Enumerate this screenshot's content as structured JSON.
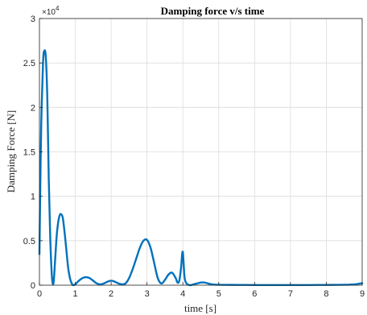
{
  "chart_data": {
    "type": "line",
    "title": "Damping force v/s time",
    "xlabel": "time [s]",
    "ylabel": "Damping Force [N]",
    "xlim": [
      0,
      9
    ],
    "ylim": [
      0,
      3
    ],
    "y_multiplier": "×10",
    "y_multiplier_exponent": "4",
    "x_ticks": [
      "0",
      "1",
      "2",
      "3",
      "4",
      "5",
      "6",
      "7",
      "8",
      "9"
    ],
    "y_ticks": [
      "0",
      "0.5",
      "1",
      "1.5",
      "2",
      "2.5",
      "3"
    ],
    "grid": true,
    "series": [
      {
        "color": "#0072BD",
        "x": [
          0.0,
          0.02,
          0.05,
          0.1,
          0.14,
          0.18,
          0.22,
          0.26,
          0.3,
          0.34,
          0.37,
          0.4,
          0.44,
          0.48,
          0.52,
          0.56,
          0.6,
          0.65,
          0.7,
          0.75,
          0.8,
          0.85,
          0.9,
          0.95,
          1.0,
          1.05,
          1.1,
          1.2,
          1.3,
          1.4,
          1.5,
          1.6,
          1.7,
          1.8,
          1.9,
          2.0,
          2.1,
          2.2,
          2.3,
          2.4,
          2.5,
          2.6,
          2.7,
          2.8,
          2.9,
          3.0,
          3.1,
          3.2,
          3.3,
          3.4,
          3.5,
          3.6,
          3.7,
          3.8,
          3.85,
          3.9,
          3.95,
          3.98,
          4.0,
          4.02,
          4.05,
          4.1,
          4.2,
          4.3,
          4.4,
          4.5,
          4.6,
          4.7,
          4.8,
          5.0,
          5.5,
          6.0,
          6.5,
          7.0,
          7.5,
          8.0,
          8.5,
          8.8,
          8.95,
          9.0
        ],
        "y": [
          0.35,
          1.0,
          1.8,
          2.5,
          2.64,
          2.55,
          2.1,
          1.2,
          0.55,
          0.15,
          0.02,
          0.05,
          0.3,
          0.55,
          0.7,
          0.78,
          0.8,
          0.76,
          0.6,
          0.4,
          0.2,
          0.08,
          0.02,
          0.0,
          0.01,
          0.03,
          0.05,
          0.08,
          0.09,
          0.08,
          0.05,
          0.02,
          0.01,
          0.02,
          0.04,
          0.05,
          0.04,
          0.02,
          0.01,
          0.02,
          0.08,
          0.18,
          0.3,
          0.42,
          0.5,
          0.51,
          0.42,
          0.25,
          0.08,
          0.02,
          0.06,
          0.12,
          0.14,
          0.08,
          0.03,
          0.05,
          0.2,
          0.35,
          0.37,
          0.25,
          0.08,
          0.02,
          0.0,
          0.01,
          0.02,
          0.03,
          0.03,
          0.02,
          0.01,
          0.005,
          0.003,
          0.002,
          0.002,
          0.002,
          0.002,
          0.003,
          0.005,
          0.01,
          0.02,
          0.02
        ]
      }
    ]
  }
}
